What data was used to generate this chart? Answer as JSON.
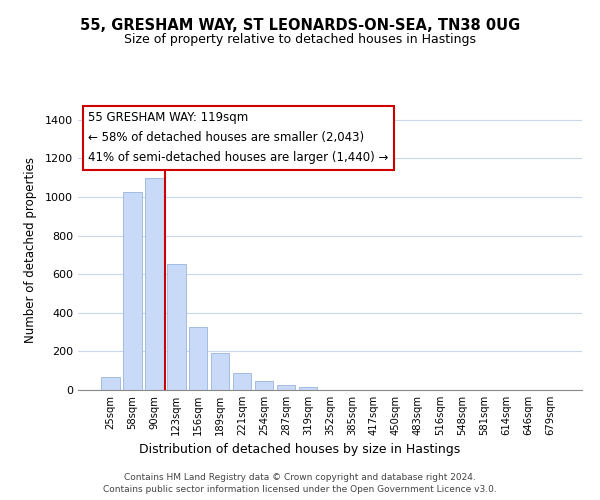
{
  "title": "55, GRESHAM WAY, ST LEONARDS-ON-SEA, TN38 0UG",
  "subtitle": "Size of property relative to detached houses in Hastings",
  "xlabel": "Distribution of detached houses by size in Hastings",
  "ylabel": "Number of detached properties",
  "bar_labels": [
    "25sqm",
    "58sqm",
    "90sqm",
    "123sqm",
    "156sqm",
    "189sqm",
    "221sqm",
    "254sqm",
    "287sqm",
    "319sqm",
    "352sqm",
    "385sqm",
    "417sqm",
    "450sqm",
    "483sqm",
    "516sqm",
    "548sqm",
    "581sqm",
    "614sqm",
    "646sqm",
    "679sqm"
  ],
  "bar_values": [
    65,
    1025,
    1100,
    650,
    325,
    190,
    90,
    48,
    25,
    18,
    0,
    0,
    0,
    0,
    0,
    0,
    0,
    0,
    0,
    0,
    0
  ],
  "bar_color": "#c9daf8",
  "bar_edge_color": "#a4bce0",
  "vline_color": "#cc0000",
  "ylim": [
    0,
    1450
  ],
  "yticks": [
    0,
    200,
    400,
    600,
    800,
    1000,
    1200,
    1400
  ],
  "annotation_line1": "55 GRESHAM WAY: 119sqm",
  "annotation_line2": "← 58% of detached houses are smaller (2,043)",
  "annotation_line3": "41% of semi-detached houses are larger (1,440) →",
  "annotation_box_color": "#ffffff",
  "annotation_box_edge": "#cc0000",
  "footer_line1": "Contains HM Land Registry data © Crown copyright and database right 2024.",
  "footer_line2": "Contains public sector information licensed under the Open Government Licence v3.0.",
  "background_color": "#ffffff",
  "grid_color": "#c8d8ea"
}
